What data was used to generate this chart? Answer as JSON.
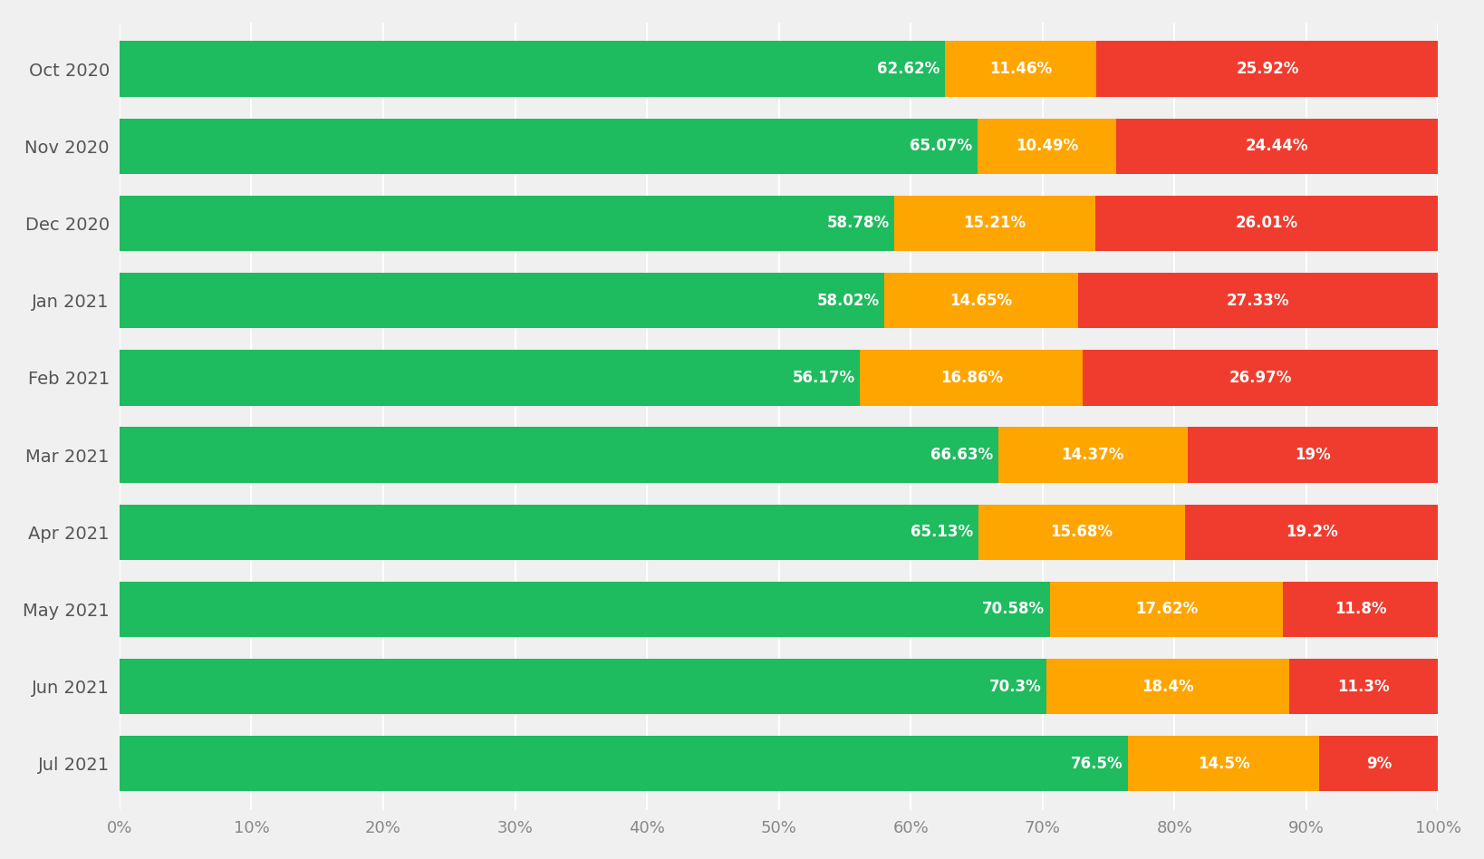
{
  "months": [
    "Oct 2020",
    "Nov 2020",
    "Dec 2020",
    "Jan 2021",
    "Feb 2021",
    "Mar 2021",
    "Apr 2021",
    "May 2021",
    "Jun 2021",
    "Jul 2021"
  ],
  "good": [
    62.62,
    65.07,
    58.78,
    58.02,
    56.17,
    66.63,
    65.13,
    70.58,
    70.3,
    76.5
  ],
  "needs_improvement": [
    11.46,
    10.49,
    15.21,
    14.65,
    16.86,
    14.37,
    15.68,
    17.62,
    18.4,
    14.5
  ],
  "poor": [
    25.92,
    24.44,
    26.01,
    27.33,
    26.97,
    19.0,
    19.2,
    11.8,
    11.3,
    9.0
  ],
  "good_labels": [
    "62.62%",
    "65.07%",
    "58.78%",
    "58.02%",
    "56.17%",
    "66.63%",
    "65.13%",
    "70.58%",
    "70.3%",
    "76.5%"
  ],
  "needs_improvement_labels": [
    "11.46%",
    "10.49%",
    "15.21%",
    "14.65%",
    "16.86%",
    "14.37%",
    "15.68%",
    "17.62%",
    "18.4%",
    "14.5%"
  ],
  "poor_labels": [
    "25.92%",
    "24.44%",
    "26.01%",
    "27.33%",
    "26.97%",
    "19%",
    "19.2%",
    "11.8%",
    "11.3%",
    "9%"
  ],
  "color_good": "#1fbb5f",
  "color_needs_improvement": "#FFA500",
  "color_poor": "#f03c2e",
  "background_color": "#F0F0F0",
  "bar_height": 0.72,
  "text_color_white": "#FFFFFF",
  "xlabel_ticks": [
    "0%",
    "10%",
    "20%",
    "30%",
    "40%",
    "50%",
    "60%",
    "70%",
    "80%",
    "90%",
    "100%"
  ],
  "xlabel_vals": [
    0,
    10,
    20,
    30,
    40,
    50,
    60,
    70,
    80,
    90,
    100
  ],
  "font_size_labels": 12,
  "font_size_ticks": 13,
  "font_size_yticks": 14
}
